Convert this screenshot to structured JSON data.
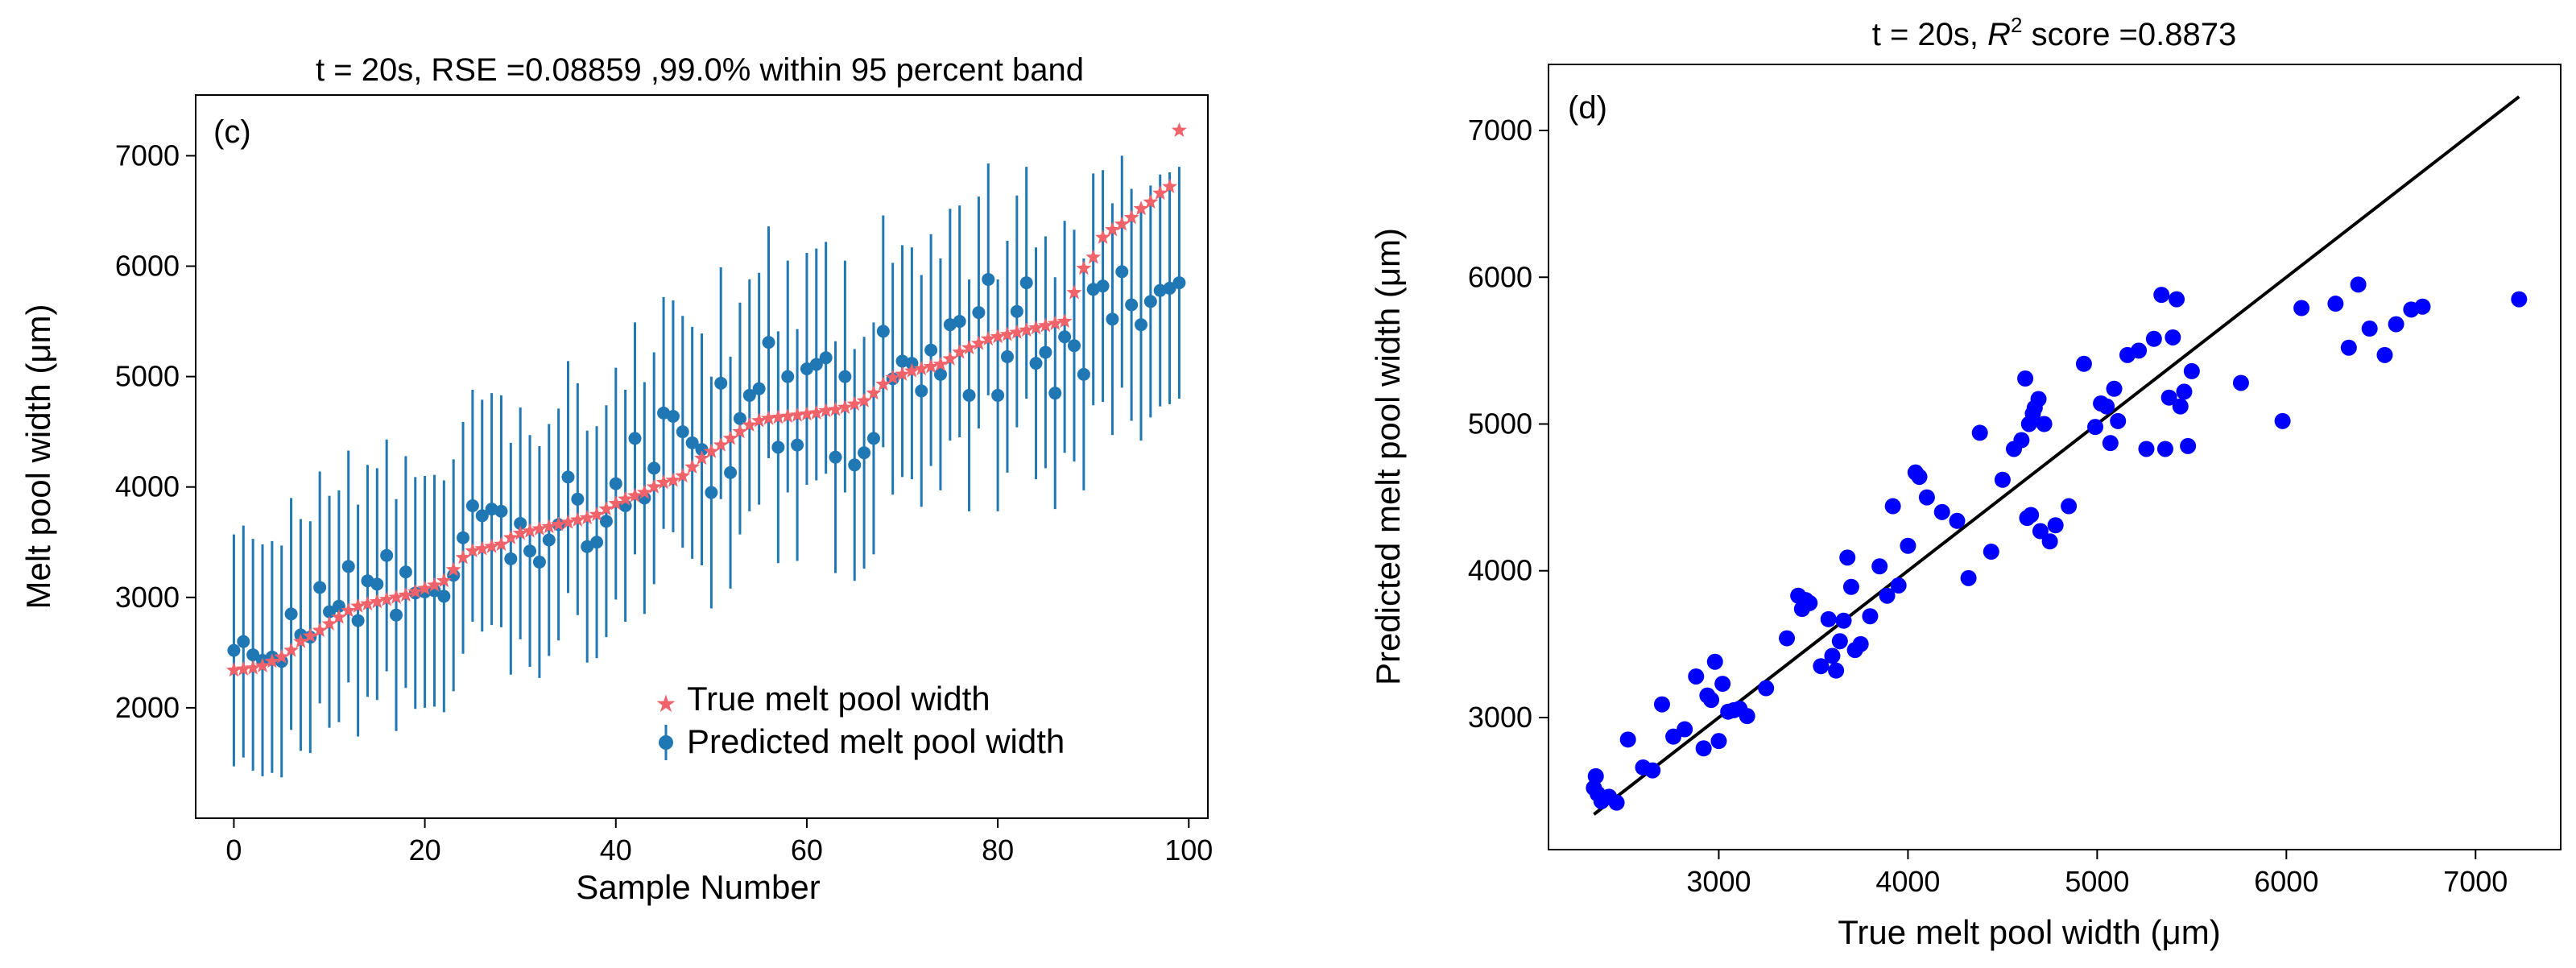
{
  "chart_data": [
    {
      "type": "scatter",
      "panel_label": "(c)",
      "title": "t = 20s, RSE =0.08859 ,99.0% within 95 percent band",
      "xlabel": "Sample Number",
      "ylabel": "Melt pool width (μm)",
      "xlim": [
        -4,
        102
      ],
      "ylim": [
        1000,
        7550
      ],
      "xticks": [
        0,
        20,
        40,
        60,
        80,
        100
      ],
      "yticks": [
        2000,
        3000,
        4000,
        5000,
        6000,
        7000
      ],
      "legend_position": "lower-right",
      "series": [
        {
          "name": "True melt pool width",
          "marker": "star",
          "color": "#f0636b",
          "x": [
            0,
            1,
            2,
            3,
            4,
            5,
            6,
            7,
            8,
            9,
            10,
            11,
            12,
            13,
            14,
            15,
            16,
            17,
            18,
            19,
            20,
            21,
            22,
            23,
            24,
            25,
            26,
            27,
            28,
            29,
            30,
            31,
            32,
            33,
            34,
            35,
            36,
            37,
            38,
            39,
            40,
            41,
            42,
            43,
            44,
            45,
            46,
            47,
            48,
            49,
            50,
            51,
            52,
            53,
            54,
            55,
            56,
            57,
            58,
            59,
            60,
            61,
            62,
            63,
            64,
            65,
            66,
            67,
            68,
            69,
            70,
            71,
            72,
            73,
            74,
            75,
            76,
            77,
            78,
            79,
            80,
            81,
            82,
            83,
            84,
            85,
            86,
            87,
            88,
            89,
            90,
            91,
            92,
            93,
            94,
            95,
            96,
            97,
            98,
            99
          ],
          "values": [
            2340,
            2350,
            2360,
            2380,
            2420,
            2460,
            2520,
            2600,
            2650,
            2700,
            2760,
            2820,
            2880,
            2920,
            2940,
            2960,
            2980,
            3000,
            3020,
            3050,
            3080,
            3110,
            3150,
            3250,
            3360,
            3420,
            3440,
            3460,
            3480,
            3540,
            3580,
            3600,
            3620,
            3640,
            3660,
            3680,
            3700,
            3720,
            3750,
            3800,
            3850,
            3890,
            3920,
            3950,
            4000,
            4040,
            4060,
            4100,
            4180,
            4260,
            4320,
            4380,
            4440,
            4500,
            4560,
            4600,
            4620,
            4630,
            4640,
            4650,
            4660,
            4670,
            4690,
            4700,
            4720,
            4750,
            4780,
            4850,
            4930,
            4990,
            5020,
            5050,
            5070,
            5090,
            5110,
            5160,
            5220,
            5260,
            5300,
            5340,
            5360,
            5380,
            5400,
            5420,
            5440,
            5460,
            5480,
            5500,
            5760,
            5980,
            6080,
            6260,
            6330,
            6380,
            6440,
            6520,
            6580,
            6660,
            6720,
            7230
          ]
        },
        {
          "name": "Predicted melt pool width",
          "marker": "circle",
          "color": "#1f77b4",
          "x": [
            0,
            1,
            2,
            3,
            4,
            5,
            6,
            7,
            8,
            9,
            10,
            11,
            12,
            13,
            14,
            15,
            16,
            17,
            18,
            19,
            20,
            21,
            22,
            23,
            24,
            25,
            26,
            27,
            28,
            29,
            30,
            31,
            32,
            33,
            34,
            35,
            36,
            37,
            38,
            39,
            40,
            41,
            42,
            43,
            44,
            45,
            46,
            47,
            48,
            49,
            50,
            51,
            52,
            53,
            54,
            55,
            56,
            57,
            58,
            59,
            60,
            61,
            62,
            63,
            64,
            65,
            66,
            67,
            68,
            69,
            70,
            71,
            72,
            73,
            74,
            75,
            76,
            77,
            78,
            79,
            80,
            81,
            82,
            83,
            84,
            85,
            86,
            87,
            88,
            89,
            90,
            91,
            92,
            93,
            94,
            95,
            96,
            97,
            98,
            99
          ],
          "values": [
            2520,
            2600,
            2480,
            2430,
            2460,
            2420,
            2850,
            2660,
            2640,
            3090,
            2870,
            2920,
            3280,
            2790,
            3150,
            3120,
            3380,
            2840,
            3230,
            3040,
            3050,
            3060,
            3010,
            3200,
            3540,
            3830,
            3740,
            3800,
            3780,
            3350,
            3670,
            3420,
            3320,
            3520,
            3660,
            4090,
            3890,
            3460,
            3500,
            3690,
            4030,
            3830,
            4440,
            3900,
            4170,
            4670,
            4640,
            4500,
            4400,
            4340,
            3950,
            4940,
            4130,
            4620,
            4830,
            4890,
            5310,
            4360,
            5000,
            4380,
            5070,
            5110,
            5170,
            4270,
            5000,
            4200,
            4310,
            4440,
            5410,
            4980,
            5140,
            5120,
            4870,
            5240,
            5020,
            5470,
            5500,
            4830,
            5580,
            5880,
            4830,
            5180,
            5590,
            5850,
            5120,
            5220,
            4850,
            5360,
            5280,
            5020,
            5790,
            5820,
            5520,
            5950,
            5650,
            5470,
            5680,
            5780,
            5800,
            5850
          ]
        }
      ],
      "error_bar_halfwidth": [
        1050,
        1050,
        1050,
        1050,
        1050,
        1050,
        1050,
        1050,
        1050,
        1050,
        1050,
        1050,
        1050,
        1050,
        1050,
        1050,
        1050,
        1050,
        1050,
        1050,
        1050,
        1050,
        1050,
        1050,
        1050,
        1050,
        1050,
        1050,
        1050,
        1050,
        1050,
        1050,
        1050,
        1050,
        1050,
        1050,
        1050,
        1050,
        1050,
        1050,
        1050,
        1050,
        1050,
        1050,
        1050,
        1050,
        1050,
        1050,
        1050,
        1050,
        1050,
        1050,
        1050,
        1050,
        1050,
        1050,
        1050,
        1050,
        1050,
        1050,
        1050,
        1050,
        1050,
        1050,
        1050,
        1050,
        1050,
        1050,
        1050,
        1050,
        1050,
        1050,
        1050,
        1050,
        1050,
        1050,
        1050,
        1050,
        1050,
        1050,
        1050,
        1050,
        1050,
        1050,
        1050,
        1050,
        1050,
        1050,
        1050,
        1050,
        1050,
        1050,
        1050,
        1050,
        1050,
        1050,
        1050,
        1050,
        1050,
        1050
      ]
    },
    {
      "type": "scatter",
      "panel_label": "(d)",
      "title_prefix": "t = 20s, ",
      "title_r": "R",
      "title_sup": "2",
      "title_suffix": " score =0.8873",
      "xlabel": "True melt pool width (μm)",
      "ylabel": "Predicted melt pool width (μm)",
      "xlim": [
        2100,
        7450
      ],
      "ylim": [
        2100,
        7450
      ],
      "xticks": [
        3000,
        4000,
        5000,
        6000,
        7000
      ],
      "yticks": [
        3000,
        4000,
        5000,
        6000,
        7000
      ],
      "point_color": "#0000ff",
      "line": {
        "from": [
          2340,
          2340
        ],
        "to": [
          7230,
          7230
        ],
        "color": "#000000"
      },
      "points_ref": "pairs true (series 0) vs predicted (series 1) of chart (c)"
    }
  ]
}
